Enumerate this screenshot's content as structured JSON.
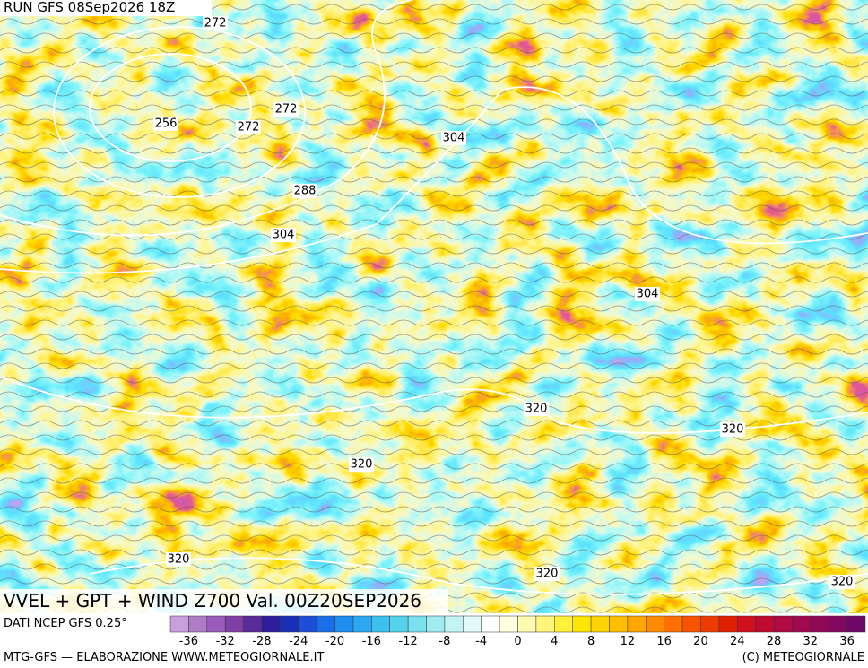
{
  "header": {
    "run": "RUN GFS 08Sep2026 18Z"
  },
  "contour_labels": [
    272,
    256,
    272,
    272,
    304,
    288,
    304,
    304,
    320,
    320,
    320,
    320,
    320,
    320
  ],
  "title": "VVEL + GPT + WIND Z700 Val. 00Z20SEP2026",
  "source": "DATI NCEP GFS 0.25°",
  "legend": {
    "ticks": [
      -36,
      -32,
      -28,
      -24,
      -20,
      -16,
      -12,
      -8,
      -4,
      0,
      4,
      8,
      12,
      16,
      20,
      24,
      28,
      32,
      36
    ],
    "colors": [
      "#c9a0dc",
      "#b07cc8",
      "#9a5cb8",
      "#7f3fa6",
      "#5a2b9a",
      "#2d1f9c",
      "#1a2fb8",
      "#1a4fd6",
      "#1a6fe8",
      "#1f8ef0",
      "#2aa8f2",
      "#3cc0f0",
      "#55d3ee",
      "#79e2ee",
      "#9eecf0",
      "#c2f4f4",
      "#e2fafa",
      "#ffffff",
      "#ffffe0",
      "#fffab0",
      "#fff57a",
      "#fff03c",
      "#ffe600",
      "#ffd400",
      "#ffbe00",
      "#ffa500",
      "#ff8c00",
      "#ff7000",
      "#f85400",
      "#ee3a00",
      "#e02000",
      "#d01020",
      "#c00a30",
      "#b00840",
      "#a00850",
      "#900858",
      "#800860",
      "#700868"
    ]
  },
  "footer": {
    "left": "MTG-GFS — ELABORAZIONE WWW.METEOGIORNALE.IT",
    "right": "(C) METEOGIORNALE"
  }
}
